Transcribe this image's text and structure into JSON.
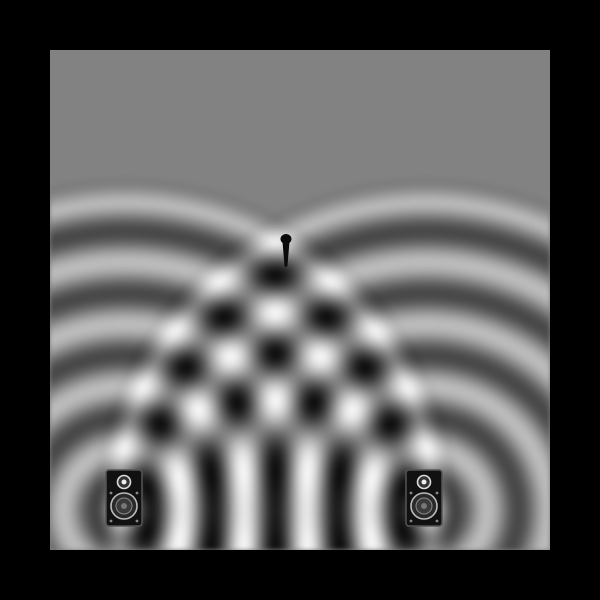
{
  "scene": {
    "type": "two-speaker-interference-simulation",
    "background_color": "#000000",
    "field_color": "#828282",
    "wave_tone_light": "#f2f2f2",
    "wave_tone_dark": "#0a0a0a"
  },
  "speakers": [
    {
      "name": "left-speaker",
      "icon": "speaker-icon"
    },
    {
      "name": "right-speaker",
      "icon": "speaker-icon"
    }
  ],
  "microphone": {
    "icon": "microphone-icon"
  }
}
